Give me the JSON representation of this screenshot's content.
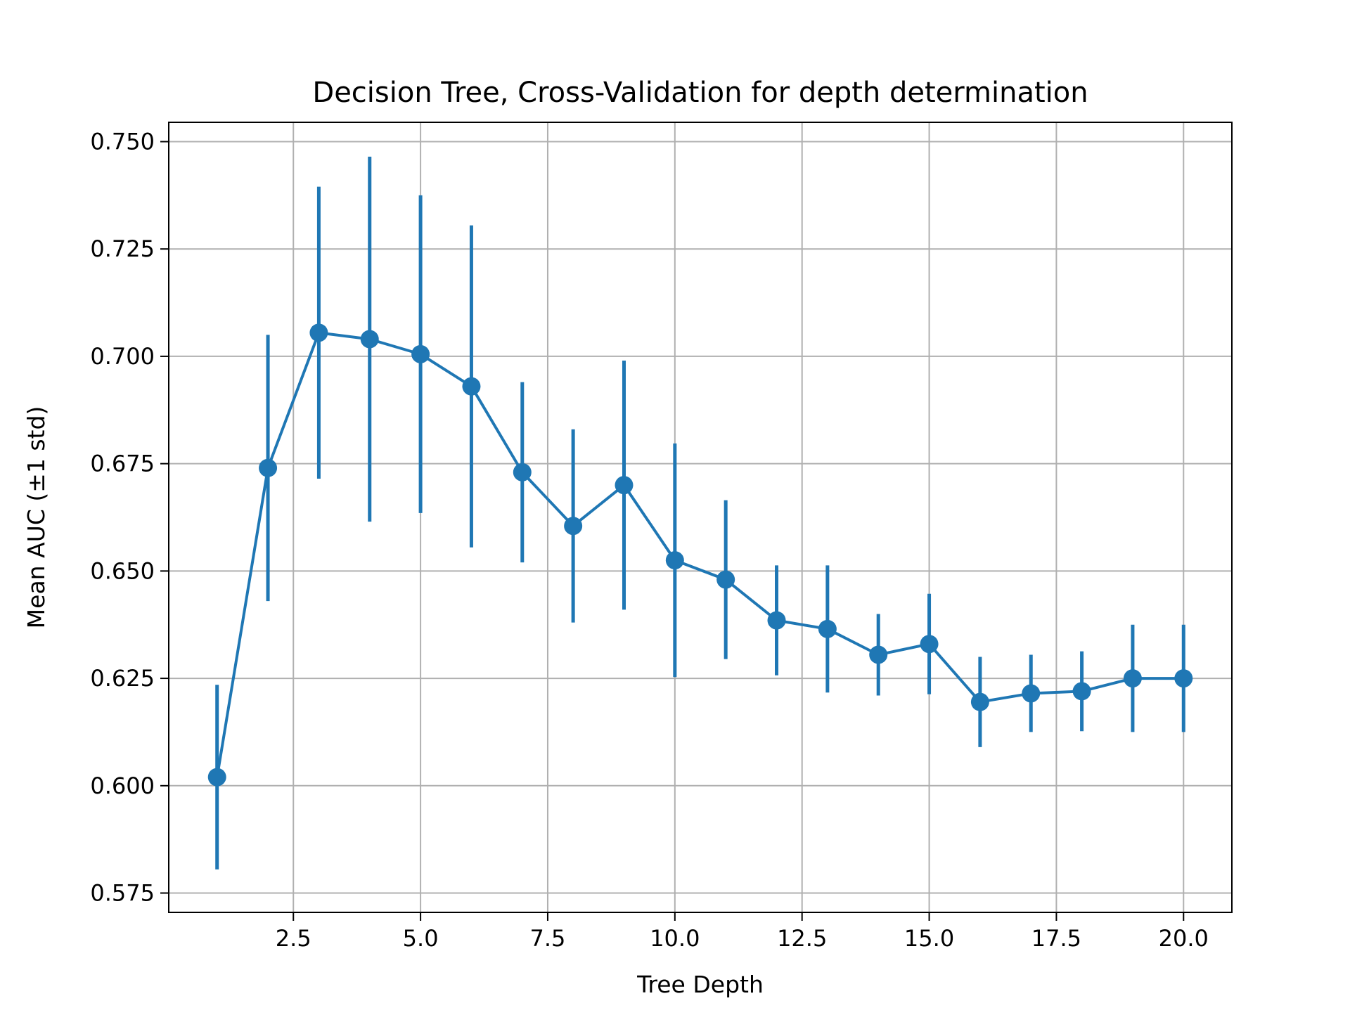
{
  "chart_data": {
    "type": "line",
    "title": "Decision Tree, Cross-Validation for depth determination",
    "xlabel": "Tree Depth",
    "ylabel": "Mean AUC (±1 std)",
    "xlim": [
      0.05,
      20.95
    ],
    "ylim": [
      0.5705,
      0.7545
    ],
    "xticks": [
      2.5,
      5.0,
      7.5,
      10.0,
      12.5,
      15.0,
      17.5,
      20.0
    ],
    "xtick_labels": [
      "2.5",
      "5.0",
      "7.5",
      "10.0",
      "12.5",
      "15.0",
      "17.5",
      "20.0"
    ],
    "yticks": [
      0.575,
      0.6,
      0.625,
      0.65,
      0.675,
      0.7,
      0.725,
      0.75
    ],
    "ytick_labels": [
      "0.575",
      "0.600",
      "0.625",
      "0.650",
      "0.675",
      "0.700",
      "0.725",
      "0.750"
    ],
    "grid": true,
    "series": [
      {
        "color": "#1f77b4",
        "x": [
          1,
          2,
          3,
          4,
          5,
          6,
          7,
          8,
          9,
          10,
          11,
          12,
          13,
          14,
          15,
          16,
          17,
          18,
          19,
          20
        ],
        "y": [
          0.602,
          0.674,
          0.7055,
          0.704,
          0.7005,
          0.693,
          0.673,
          0.6605,
          0.67,
          0.6525,
          0.648,
          0.6385,
          0.6365,
          0.6305,
          0.633,
          0.6195,
          0.6215,
          0.622,
          0.625,
          0.625
        ],
        "std": [
          0.0215,
          0.031,
          0.034,
          0.0425,
          0.037,
          0.0375,
          0.021,
          0.0225,
          0.029,
          0.0272,
          0.0185,
          0.0128,
          0.0148,
          0.0095,
          0.0117,
          0.0105,
          0.009,
          0.0093,
          0.0125,
          0.0125
        ]
      }
    ]
  }
}
